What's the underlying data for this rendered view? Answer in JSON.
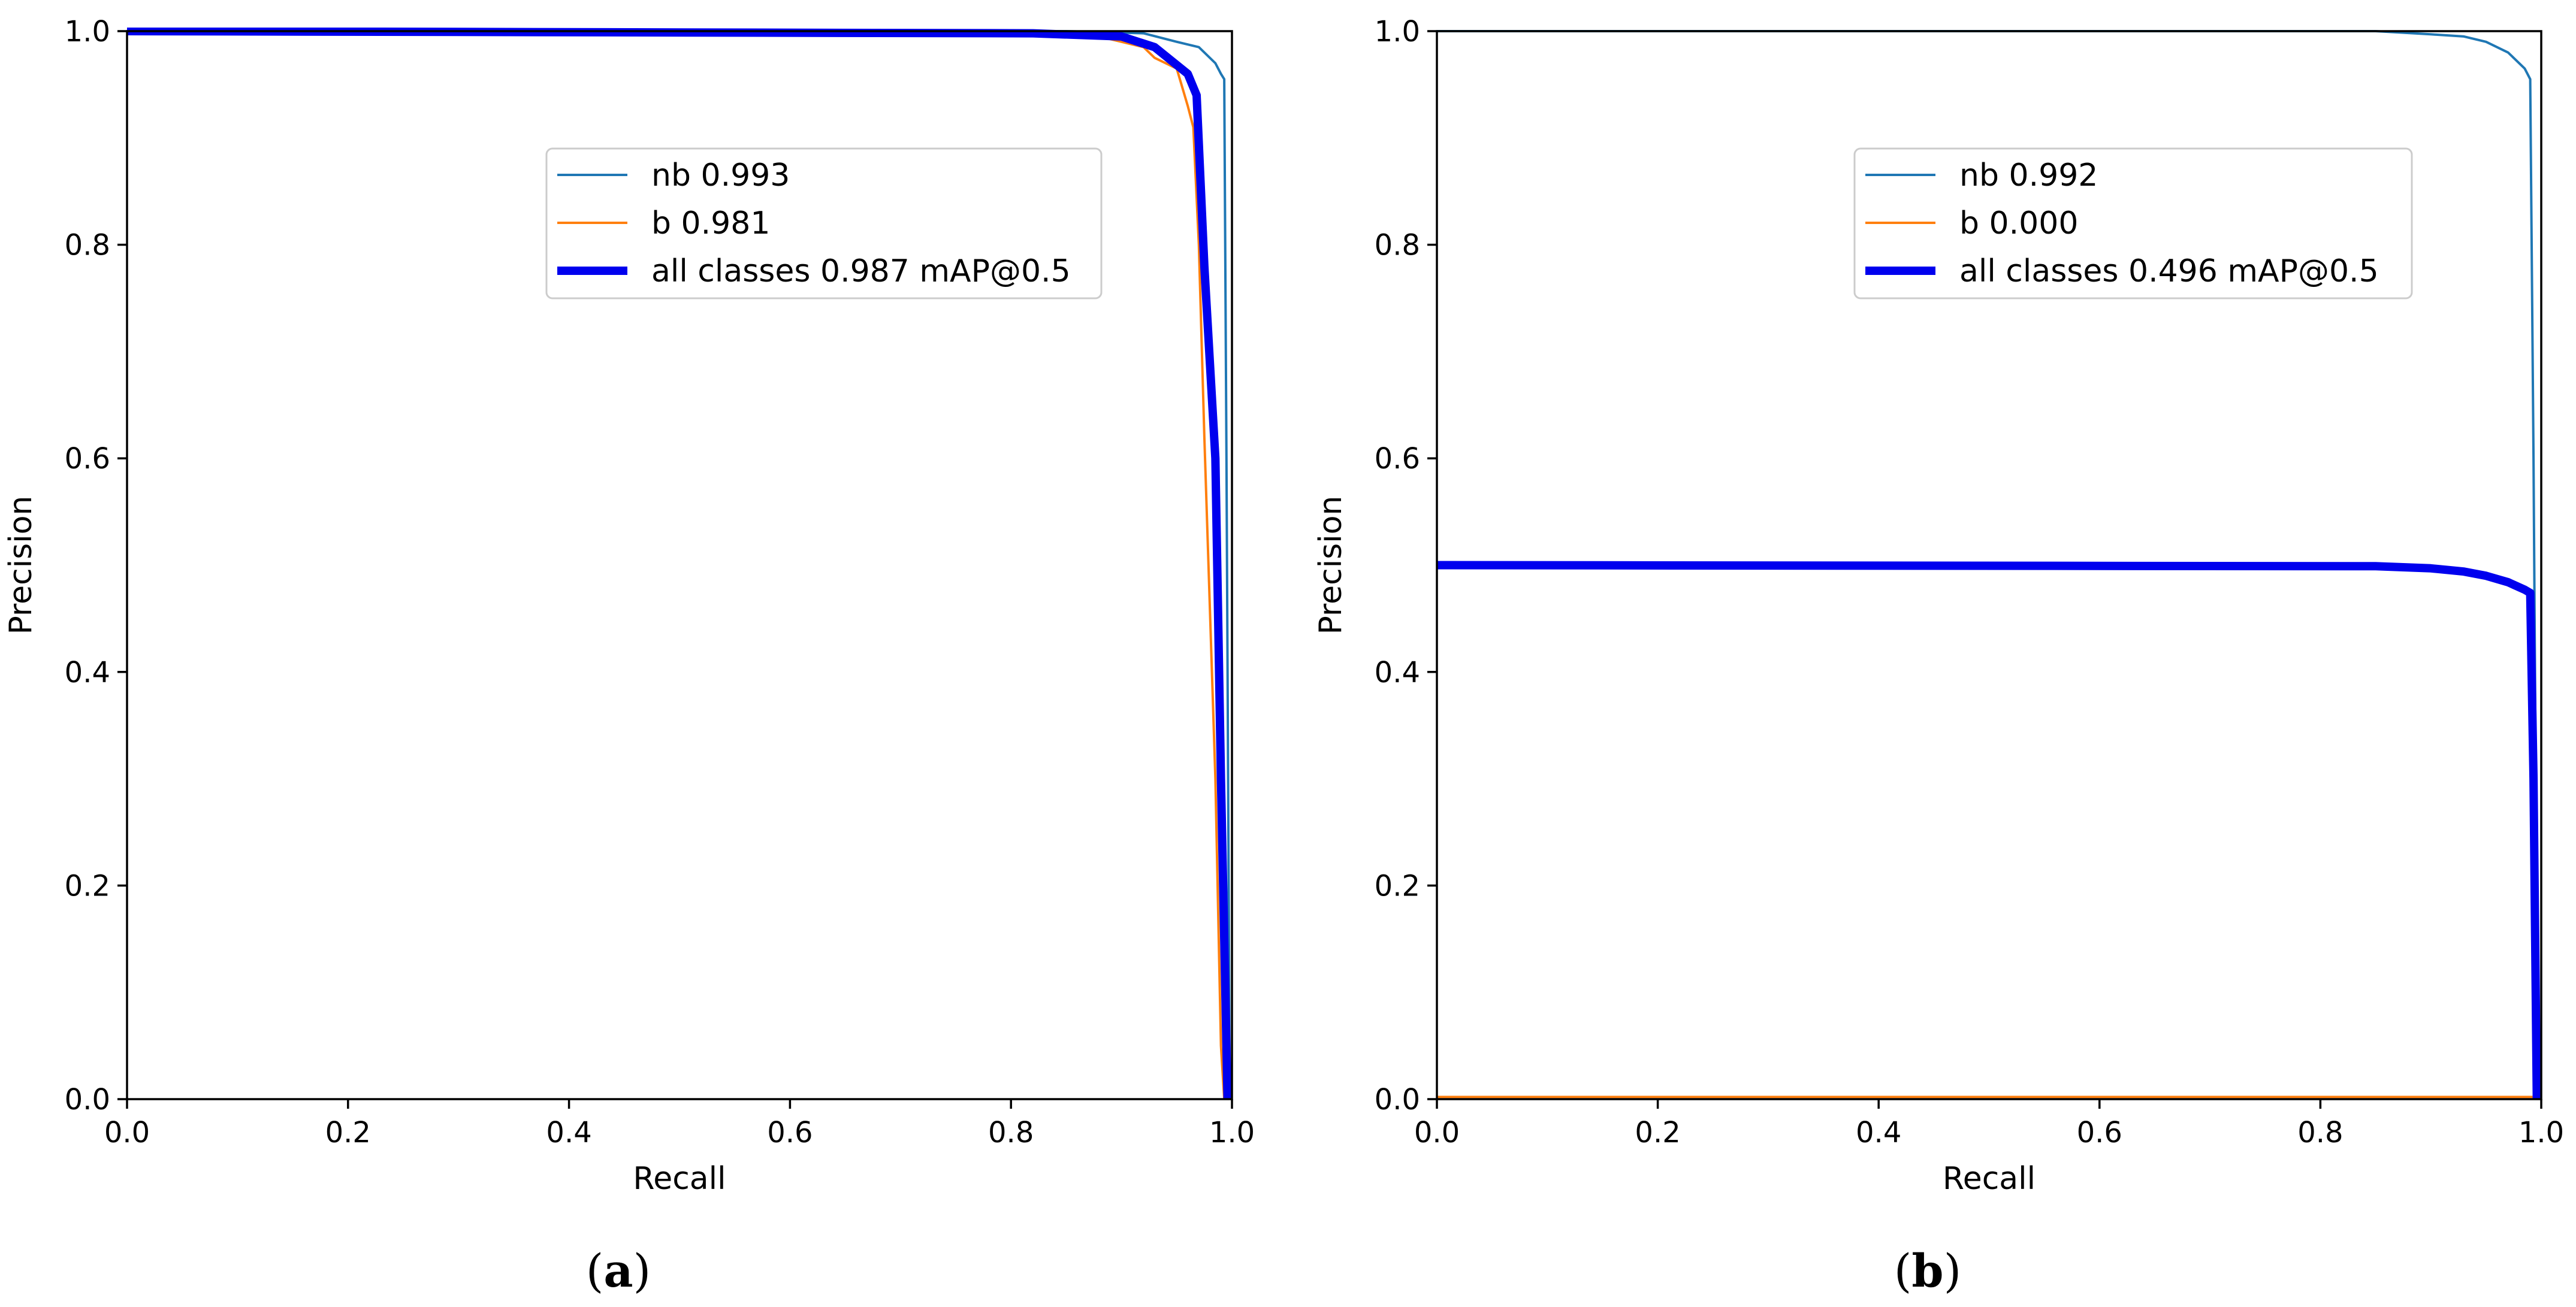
{
  "chart_data": [
    {
      "type": "line",
      "panel": "a",
      "caption": "a",
      "xlabel": "Recall",
      "ylabel": "Precision",
      "xlim": [
        0,
        1
      ],
      "ylim": [
        0,
        1
      ],
      "xticks": [
        "0.0",
        "0.2",
        "0.4",
        "0.6",
        "0.8",
        "1.0"
      ],
      "yticks": [
        "0.0",
        "0.2",
        "0.4",
        "0.6",
        "0.8",
        "1.0"
      ],
      "grid": false,
      "legend_position": "upper-center",
      "series": [
        {
          "name": "nb 0.993",
          "color": "#1f77b4",
          "width": "thin",
          "points": [
            [
              0,
              1.0
            ],
            [
              0.85,
              1.0
            ],
            [
              0.92,
              0.998
            ],
            [
              0.95,
              0.99
            ],
            [
              0.97,
              0.985
            ],
            [
              0.985,
              0.97
            ],
            [
              0.99,
              0.96
            ],
            [
              0.993,
              0.955
            ],
            [
              0.995,
              0.6
            ],
            [
              0.997,
              0.2
            ],
            [
              0.998,
              0.0
            ]
          ]
        },
        {
          "name": "b 0.981",
          "color": "#ff7f0e",
          "width": "thin",
          "points": [
            [
              0,
              1.0
            ],
            [
              0.8,
              1.0
            ],
            [
              0.88,
              0.995
            ],
            [
              0.92,
              0.985
            ],
            [
              0.93,
              0.975
            ],
            [
              0.95,
              0.965
            ],
            [
              0.96,
              0.93
            ],
            [
              0.965,
              0.91
            ],
            [
              0.97,
              0.8
            ],
            [
              0.975,
              0.62
            ],
            [
              0.985,
              0.3
            ],
            [
              0.99,
              0.05
            ],
            [
              0.993,
              0.0
            ]
          ]
        },
        {
          "name": "all classes 0.987 mAP@0.5",
          "color": "#0000ee",
          "width": "thick",
          "points": [
            [
              0,
              1.0
            ],
            [
              0.82,
              0.998
            ],
            [
              0.9,
              0.995
            ],
            [
              0.93,
              0.985
            ],
            [
              0.96,
              0.96
            ],
            [
              0.968,
              0.94
            ],
            [
              0.975,
              0.78
            ],
            [
              0.985,
              0.6
            ],
            [
              0.99,
              0.3
            ],
            [
              0.996,
              0.0
            ]
          ]
        }
      ]
    },
    {
      "type": "line",
      "panel": "b",
      "caption": "b",
      "xlabel": "Recall",
      "ylabel": "Precision",
      "xlim": [
        0,
        1
      ],
      "ylim": [
        0,
        1
      ],
      "xticks": [
        "0.0",
        "0.2",
        "0.4",
        "0.6",
        "0.8",
        "1.0"
      ],
      "yticks": [
        "0.0",
        "0.2",
        "0.4",
        "0.6",
        "0.8",
        "1.0"
      ],
      "grid": false,
      "legend_position": "upper-center",
      "series": [
        {
          "name": "nb 0.992",
          "color": "#1f77b4",
          "width": "thin",
          "points": [
            [
              0,
              1.0
            ],
            [
              0.85,
              1.0
            ],
            [
              0.9,
              0.997
            ],
            [
              0.93,
              0.995
            ],
            [
              0.95,
              0.99
            ],
            [
              0.97,
              0.98
            ],
            [
              0.985,
              0.965
            ],
            [
              0.99,
              0.955
            ],
            [
              0.993,
              0.6
            ],
            [
              0.995,
              0.3
            ],
            [
              0.998,
              0.0
            ]
          ]
        },
        {
          "name": "b 0.000",
          "color": "#ff7f0e",
          "width": "thin",
          "points": [
            [
              0,
              0.002
            ],
            [
              1.0,
              0.002
            ]
          ]
        },
        {
          "name": "all classes 0.496 mAP@0.5",
          "color": "#0000ee",
          "width": "thick",
          "points": [
            [
              0,
              0.5
            ],
            [
              0.85,
              0.499
            ],
            [
              0.9,
              0.497
            ],
            [
              0.93,
              0.494
            ],
            [
              0.95,
              0.49
            ],
            [
              0.97,
              0.484
            ],
            [
              0.985,
              0.477
            ],
            [
              0.99,
              0.474
            ],
            [
              0.993,
              0.3
            ],
            [
              0.996,
              0.0
            ]
          ]
        }
      ]
    }
  ]
}
